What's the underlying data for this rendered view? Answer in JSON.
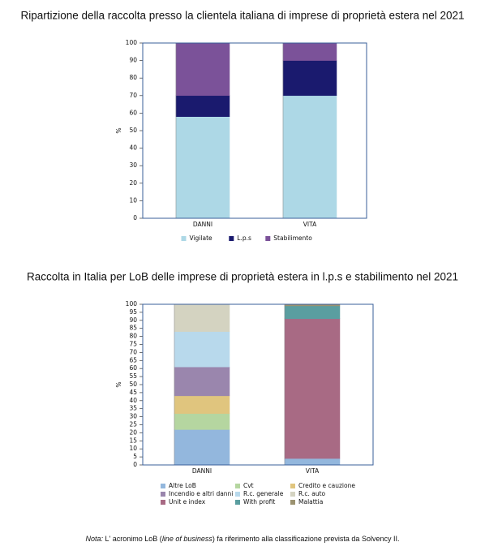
{
  "chart_data": [
    {
      "type": "bar",
      "stacked": true,
      "title": "Ripartizione della raccolta presso la clientela italiana di imprese di proprietà estera nel 2021",
      "y_label": "%",
      "categories": [
        "DANNI",
        "VITA"
      ],
      "series": [
        {
          "name": "Vigilate",
          "color": "#add8e6",
          "values": [
            58,
            70
          ]
        },
        {
          "name": "L.p.s",
          "color": "#1a1a6e",
          "values": [
            12,
            20
          ]
        },
        {
          "name": "Stabilimento",
          "color": "#7b5299",
          "values": [
            30,
            10
          ]
        }
      ],
      "ylim": [
        0,
        100
      ],
      "yticks": [
        0,
        10,
        20,
        30,
        40,
        50,
        60,
        70,
        80,
        90,
        100
      ],
      "grid": false,
      "legend": "bottom"
    },
    {
      "type": "bar",
      "stacked": true,
      "title": "Raccolta in Italia per LoB delle imprese di proprietà estera in l.p.s e stabilimento nel 2021",
      "y_label": "%",
      "categories": [
        "DANNI",
        "VITA"
      ],
      "series": [
        {
          "name": "Altre LoB",
          "color": "#93b7dd",
          "values": [
            22,
            4
          ]
        },
        {
          "name": "Cvt",
          "color": "#b5d6a0",
          "values": [
            10,
            0
          ]
        },
        {
          "name": "Credito e cauzione",
          "color": "#e0c57e",
          "values": [
            11,
            0
          ]
        },
        {
          "name": "Incendio e altri danni",
          "color": "#9a86ad",
          "values": [
            18,
            0
          ]
        },
        {
          "name": "R.c. generale",
          "color": "#b8d9ec",
          "values": [
            22,
            0
          ]
        },
        {
          "name": "R.c. auto",
          "color": "#d4d3c1",
          "values": [
            17,
            0
          ]
        },
        {
          "name": "Unit e index",
          "color": "#a86a84",
          "values": [
            0,
            87
          ]
        },
        {
          "name": "With profit",
          "color": "#5a9ea0",
          "values": [
            0,
            8
          ]
        },
        {
          "name": "Malattia",
          "color": "#9b9270",
          "values": [
            0,
            1
          ]
        }
      ],
      "ylim": [
        0,
        100
      ],
      "yticks": [
        0,
        5,
        10,
        15,
        20,
        25,
        30,
        35,
        40,
        45,
        50,
        55,
        60,
        65,
        70,
        75,
        80,
        85,
        90,
        95,
        100
      ],
      "grid": false,
      "legend": "bottom"
    }
  ],
  "note": {
    "label": "Nota:",
    "parts": [
      "L' acronimo LoB (",
      "line of business",
      ") fa riferimento alla classificazione prevista da Solvency II."
    ]
  }
}
